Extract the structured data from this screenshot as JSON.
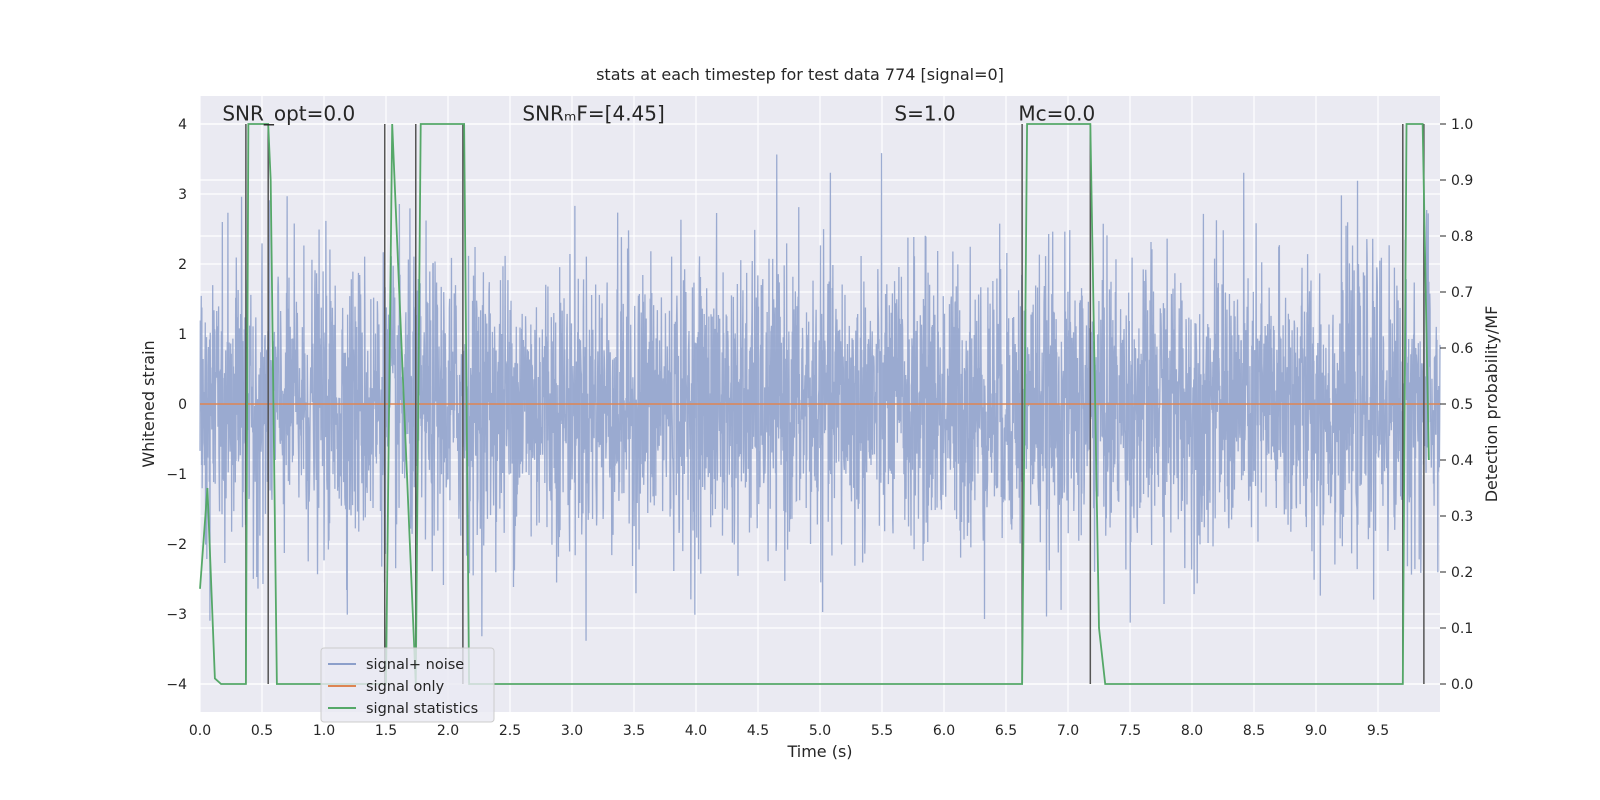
{
  "chart_data": {
    "type": "line",
    "title": "stats at each timestep for test data 774 [signal=0]",
    "xlabel": "Time (s)",
    "ylabel": "Whitened strain",
    "y2label": "Detection probability/MF",
    "xlim": [
      0.0,
      10.0
    ],
    "ylim": [
      -4.4,
      4.4
    ],
    "y2lim": [
      -0.05,
      1.05
    ],
    "x_ticks": [
      0.0,
      0.5,
      1.0,
      1.5,
      2.0,
      2.5,
      3.0,
      3.5,
      4.0,
      4.5,
      5.0,
      5.5,
      6.0,
      6.5,
      7.0,
      7.5,
      8.0,
      8.5,
      9.0,
      9.5
    ],
    "x_tick_labels": [
      "0.0",
      "0.5",
      "1.0",
      "1.5",
      "2.0",
      "2.5",
      "3.0",
      "3.5",
      "4.0",
      "4.5",
      "5.0",
      "5.5",
      "6.0",
      "6.5",
      "7.0",
      "7.5",
      "8.0",
      "8.5",
      "9.0",
      "9.5"
    ],
    "y_ticks": [
      -4,
      -3,
      -2,
      -1,
      0,
      1,
      2,
      3,
      4
    ],
    "y_tick_labels": [
      "−4",
      "−3",
      "−2",
      "−1",
      "0",
      "1",
      "2",
      "3",
      "4"
    ],
    "y2_ticks": [
      0.0,
      0.1,
      0.2,
      0.3,
      0.4,
      0.5,
      0.6,
      0.7,
      0.8,
      0.9,
      1.0
    ],
    "y2_tick_labels": [
      "0.0",
      "0.1",
      "0.2",
      "0.3",
      "0.4",
      "0.5",
      "0.6",
      "0.7",
      "0.8",
      "0.9",
      "1.0"
    ],
    "grid": true,
    "legend_position": "lower-left",
    "annotations": [
      {
        "text": "SNR_opt=0.0",
        "x": 0.18,
        "y": 4.15
      },
      {
        "text": "SNRₘF=[4.45]",
        "x": 2.6,
        "y": 4.15
      },
      {
        "text": "S=1.0",
        "x": 5.6,
        "y": 4.15
      },
      {
        "text": "Mᴄ=0.0",
        "x": 6.6,
        "y": 4.15
      }
    ],
    "series": [
      {
        "name": "signal+ noise",
        "color": "#8c9fca",
        "kind": "noise",
        "sample_rate_hz": 2048,
        "std": 1.0,
        "min": -4.03,
        "max": 4.0
      },
      {
        "name": "signal only",
        "color": "#dd8452",
        "kind": "line",
        "x": [
          0.0,
          10.0
        ],
        "y": [
          0.0,
          0.0
        ]
      },
      {
        "name": "signal statistics",
        "color": "#55a868",
        "kind": "line",
        "axis": "right",
        "x": [
          0.0,
          0.06,
          0.12,
          0.17,
          0.37,
          0.39,
          0.55,
          0.57,
          0.62,
          1.5,
          1.55,
          1.74,
          1.78,
          2.13,
          2.17,
          6.63,
          6.67,
          6.7,
          7.18,
          7.25,
          7.3,
          8.3,
          9.7,
          9.73,
          9.86,
          9.91
        ],
        "y": [
          0.17,
          0.35,
          0.01,
          0.0,
          0.0,
          1.0,
          1.0,
          0.9,
          0.0,
          0.0,
          1.0,
          0.0,
          1.0,
          1.0,
          0.0,
          0.0,
          1.0,
          1.0,
          1.0,
          0.1,
          0.0,
          0.0,
          0.0,
          1.0,
          1.0,
          0.4
        ]
      }
    ],
    "vertical_lines": {
      "color": "#555555",
      "x": [
        0.37,
        0.55,
        1.49,
        1.74,
        2.12,
        6.63,
        7.18,
        9.7,
        9.87
      ]
    }
  }
}
